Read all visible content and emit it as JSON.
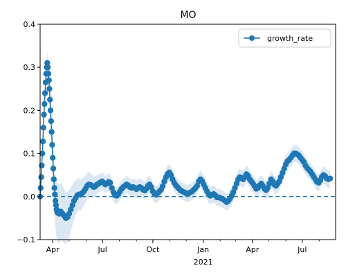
{
  "chart_data": {
    "type": "line",
    "title": "MO",
    "xlabel": "",
    "ylabel": "",
    "x_range": [
      "2020-03-09",
      "2021-08-31"
    ],
    "ylim": [
      -0.1,
      0.4
    ],
    "yticks": [
      -0.1,
      0.0,
      0.1,
      0.2,
      0.3,
      0.4
    ],
    "ytick_labels": [
      "−0.1",
      "0.0",
      "0.1",
      "0.2",
      "0.3",
      "0.4"
    ],
    "xticks": [
      {
        "date": "2020-04-01",
        "label": "Apr",
        "sublabel": ""
      },
      {
        "date": "2020-07-01",
        "label": "Jul",
        "sublabel": ""
      },
      {
        "date": "2020-10-01",
        "label": "Oct",
        "sublabel": ""
      },
      {
        "date": "2021-01-01",
        "label": "Jan",
        "sublabel": "2021"
      },
      {
        "date": "2021-04-01",
        "label": "Apr",
        "sublabel": ""
      },
      {
        "date": "2021-07-01",
        "label": "Jul",
        "sublabel": ""
      }
    ],
    "reference_line": {
      "y": 0.0,
      "style": "dashed"
    },
    "legend": {
      "position": "top-right"
    },
    "grid": false,
    "series": [
      {
        "name": "growth_rate",
        "color": "#1f77b4",
        "marker": "circle",
        "band_color": "#dbe8f4",
        "band_halfwidth": [
          [
            0.0,
            0.005
          ],
          [
            0.02,
            0.02
          ],
          [
            0.04,
            0.05
          ],
          [
            0.06,
            0.07
          ],
          [
            0.09,
            0.06
          ],
          [
            0.12,
            0.04
          ],
          [
            0.2,
            0.02
          ],
          [
            1.0,
            0.02
          ]
        ],
        "points": [
          [
            "2020-03-09",
            0.0
          ],
          [
            "2020-03-10",
            0.02
          ],
          [
            "2020-03-11",
            0.045
          ],
          [
            "2020-03-12",
            0.072
          ],
          [
            "2020-03-13",
            0.1
          ],
          [
            "2020-03-14",
            0.128
          ],
          [
            "2020-03-15",
            0.16
          ],
          [
            "2020-03-16",
            0.19
          ],
          [
            "2020-03-17",
            0.215
          ],
          [
            "2020-03-18",
            0.24
          ],
          [
            "2020-03-19",
            0.265
          ],
          [
            "2020-03-20",
            0.285
          ],
          [
            "2020-03-21",
            0.3
          ],
          [
            "2020-03-22",
            0.31
          ],
          [
            "2020-03-23",
            0.3
          ],
          [
            "2020-03-24",
            0.285
          ],
          [
            "2020-03-25",
            0.27
          ],
          [
            "2020-03-26",
            0.25
          ],
          [
            "2020-03-27",
            0.225
          ],
          [
            "2020-03-28",
            0.2
          ],
          [
            "2020-03-29",
            0.175
          ],
          [
            "2020-03-30",
            0.15
          ],
          [
            "2020-03-31",
            0.12
          ],
          [
            "2020-04-01",
            0.09
          ],
          [
            "2020-04-02",
            0.065
          ],
          [
            "2020-04-03",
            0.04
          ],
          [
            "2020-04-04",
            0.02
          ],
          [
            "2020-04-05",
            0.005
          ],
          [
            "2020-04-06",
            -0.01
          ],
          [
            "2020-04-07",
            -0.02
          ],
          [
            "2020-04-08",
            -0.03
          ],
          [
            "2020-04-09",
            -0.035
          ],
          [
            "2020-04-10",
            -0.038
          ],
          [
            "2020-04-13",
            -0.04
          ],
          [
            "2020-04-16",
            -0.035
          ],
          [
            "2020-04-19",
            -0.04
          ],
          [
            "2020-04-22",
            -0.045
          ],
          [
            "2020-04-25",
            -0.05
          ],
          [
            "2020-04-28",
            -0.048
          ],
          [
            "2020-05-01",
            -0.04
          ],
          [
            "2020-05-04",
            -0.03
          ],
          [
            "2020-05-07",
            -0.02
          ],
          [
            "2020-05-10",
            -0.01
          ],
          [
            "2020-05-13",
            -0.003
          ],
          [
            "2020-05-16",
            0.003
          ],
          [
            "2020-05-19",
            0.005
          ],
          [
            "2020-05-22",
            0.004
          ],
          [
            "2020-05-25",
            0.008
          ],
          [
            "2020-05-28",
            0.012
          ],
          [
            "2020-05-31",
            0.018
          ],
          [
            "2020-06-03",
            0.025
          ],
          [
            "2020-06-06",
            0.028
          ],
          [
            "2020-06-09",
            0.027
          ],
          [
            "2020-06-12",
            0.025
          ],
          [
            "2020-06-15",
            0.022
          ],
          [
            "2020-06-18",
            0.024
          ],
          [
            "2020-06-21",
            0.028
          ],
          [
            "2020-06-24",
            0.03
          ],
          [
            "2020-06-27",
            0.033
          ],
          [
            "2020-06-30",
            0.035
          ],
          [
            "2020-07-03",
            0.032
          ],
          [
            "2020-07-06",
            0.028
          ],
          [
            "2020-07-09",
            0.03
          ],
          [
            "2020-07-12",
            0.034
          ],
          [
            "2020-07-15",
            0.032
          ],
          [
            "2020-07-18",
            0.02
          ],
          [
            "2020-07-21",
            0.01
          ],
          [
            "2020-07-24",
            0.003
          ],
          [
            "2020-07-27",
            0.002
          ],
          [
            "2020-07-30",
            0.006
          ],
          [
            "2020-08-02",
            0.012
          ],
          [
            "2020-08-05",
            0.018
          ],
          [
            "2020-08-08",
            0.022
          ],
          [
            "2020-08-11",
            0.025
          ],
          [
            "2020-08-14",
            0.028
          ],
          [
            "2020-08-17",
            0.026
          ],
          [
            "2020-08-20",
            0.022
          ],
          [
            "2020-08-23",
            0.02
          ],
          [
            "2020-08-26",
            0.022
          ],
          [
            "2020-08-29",
            0.02
          ],
          [
            "2020-09-01",
            0.017
          ],
          [
            "2020-09-04",
            0.02
          ],
          [
            "2020-09-07",
            0.022
          ],
          [
            "2020-09-10",
            0.02
          ],
          [
            "2020-09-13",
            0.016
          ],
          [
            "2020-09-16",
            0.014
          ],
          [
            "2020-09-19",
            0.018
          ],
          [
            "2020-09-22",
            0.025
          ],
          [
            "2020-09-25",
            0.028
          ],
          [
            "2020-09-28",
            0.022
          ],
          [
            "2020-10-01",
            0.012
          ],
          [
            "2020-10-04",
            0.006
          ],
          [
            "2020-10-07",
            0.004
          ],
          [
            "2020-10-10",
            0.008
          ],
          [
            "2020-10-13",
            0.012
          ],
          [
            "2020-10-16",
            0.016
          ],
          [
            "2020-10-19",
            0.024
          ],
          [
            "2020-10-22",
            0.035
          ],
          [
            "2020-10-25",
            0.045
          ],
          [
            "2020-10-28",
            0.052
          ],
          [
            "2020-10-31",
            0.056
          ],
          [
            "2020-11-03",
            0.05
          ],
          [
            "2020-11-06",
            0.04
          ],
          [
            "2020-11-09",
            0.032
          ],
          [
            "2020-11-12",
            0.026
          ],
          [
            "2020-11-15",
            0.022
          ],
          [
            "2020-11-18",
            0.018
          ],
          [
            "2020-11-21",
            0.014
          ],
          [
            "2020-11-24",
            0.012
          ],
          [
            "2020-11-27",
            0.01
          ],
          [
            "2020-11-30",
            0.008
          ],
          [
            "2020-12-03",
            0.006
          ],
          [
            "2020-12-06",
            0.008
          ],
          [
            "2020-12-09",
            0.01
          ],
          [
            "2020-12-12",
            0.012
          ],
          [
            "2020-12-15",
            0.016
          ],
          [
            "2020-12-18",
            0.02
          ],
          [
            "2020-12-21",
            0.025
          ],
          [
            "2020-12-24",
            0.035
          ],
          [
            "2020-12-27",
            0.04
          ],
          [
            "2020-12-30",
            0.036
          ],
          [
            "2021-01-02",
            0.028
          ],
          [
            "2021-01-05",
            0.02
          ],
          [
            "2021-01-08",
            0.012
          ],
          [
            "2021-01-11",
            0.006
          ],
          [
            "2021-01-14",
            0.002
          ],
          [
            "2021-01-17",
            0.004
          ],
          [
            "2021-01-20",
            0.006
          ],
          [
            "2021-01-23",
            0.003
          ],
          [
            "2021-01-26",
            -0.002
          ],
          [
            "2021-01-29",
            -0.002
          ],
          [
            "2021-02-01",
            -0.003
          ],
          [
            "2021-02-04",
            -0.005
          ],
          [
            "2021-02-07",
            -0.007
          ],
          [
            "2021-02-10",
            -0.01
          ],
          [
            "2021-02-13",
            -0.013
          ],
          [
            "2021-02-16",
            -0.01
          ],
          [
            "2021-02-19",
            -0.005
          ],
          [
            "2021-02-22",
            0.002
          ],
          [
            "2021-02-25",
            0.01
          ],
          [
            "2021-02-28",
            0.02
          ],
          [
            "2021-03-03",
            0.03
          ],
          [
            "2021-03-06",
            0.04
          ],
          [
            "2021-03-09",
            0.045
          ],
          [
            "2021-03-12",
            0.043
          ],
          [
            "2021-03-15",
            0.04
          ],
          [
            "2021-03-18",
            0.045
          ],
          [
            "2021-03-21",
            0.052
          ],
          [
            "2021-03-24",
            0.048
          ],
          [
            "2021-03-27",
            0.04
          ],
          [
            "2021-03-30",
            0.035
          ],
          [
            "2021-04-02",
            0.03
          ],
          [
            "2021-04-05",
            0.024
          ],
          [
            "2021-04-08",
            0.018
          ],
          [
            "2021-04-11",
            0.02
          ],
          [
            "2021-04-14",
            0.026
          ],
          [
            "2021-04-17",
            0.03
          ],
          [
            "2021-04-20",
            0.025
          ],
          [
            "2021-04-23",
            0.018
          ],
          [
            "2021-04-26",
            0.015
          ],
          [
            "2021-04-29",
            0.02
          ],
          [
            "2021-05-02",
            0.03
          ],
          [
            "2021-05-05",
            0.04
          ],
          [
            "2021-05-08",
            0.035
          ],
          [
            "2021-05-11",
            0.028
          ],
          [
            "2021-05-14",
            0.025
          ],
          [
            "2021-05-17",
            0.03
          ],
          [
            "2021-05-20",
            0.035
          ],
          [
            "2021-05-23",
            0.045
          ],
          [
            "2021-05-26",
            0.055
          ],
          [
            "2021-05-29",
            0.065
          ],
          [
            "2021-06-01",
            0.075
          ],
          [
            "2021-06-04",
            0.082
          ],
          [
            "2021-06-07",
            0.085
          ],
          [
            "2021-06-10",
            0.09
          ],
          [
            "2021-06-13",
            0.095
          ],
          [
            "2021-06-16",
            0.1
          ],
          [
            "2021-06-19",
            0.1
          ],
          [
            "2021-06-22",
            0.098
          ],
          [
            "2021-06-25",
            0.095
          ],
          [
            "2021-06-28",
            0.09
          ],
          [
            "2021-07-01",
            0.085
          ],
          [
            "2021-07-04",
            0.08
          ],
          [
            "2021-07-07",
            0.072
          ],
          [
            "2021-07-10",
            0.066
          ],
          [
            "2021-07-13",
            0.062
          ],
          [
            "2021-07-16",
            0.058
          ],
          [
            "2021-07-19",
            0.052
          ],
          [
            "2021-07-22",
            0.046
          ],
          [
            "2021-07-25",
            0.04
          ],
          [
            "2021-07-28",
            0.034
          ],
          [
            "2021-07-31",
            0.032
          ],
          [
            "2021-08-03",
            0.038
          ],
          [
            "2021-08-06",
            0.046
          ],
          [
            "2021-08-09",
            0.05
          ],
          [
            "2021-08-12",
            0.047
          ],
          [
            "2021-08-15",
            0.042
          ],
          [
            "2021-08-18",
            0.04
          ],
          [
            "2021-08-21",
            0.042
          ]
        ]
      }
    ]
  }
}
